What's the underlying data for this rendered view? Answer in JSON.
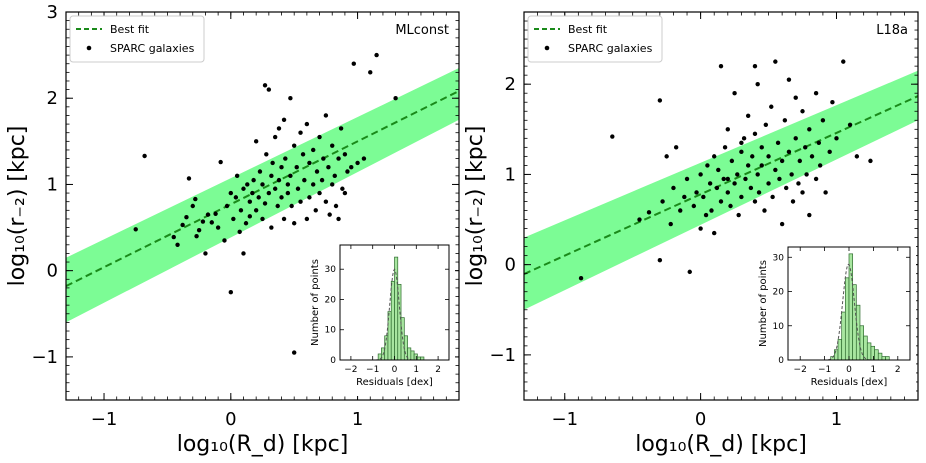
{
  "chart_data": [
    {
      "type": "scatter",
      "title": "MLconst",
      "xlabel": "log₁₀(R_d)  [kpc]",
      "ylabel": "log₁₀(r₋₂)  [kpc]",
      "xlim": [
        -1.3,
        1.8
      ],
      "ylim": [
        -1.5,
        3.0
      ],
      "xticks": [
        -1,
        0,
        1
      ],
      "yticks": [
        -1,
        0,
        1,
        2,
        3
      ],
      "legend_position": "top-left",
      "legend": [
        {
          "label": "Best fit",
          "style": "dashed-line",
          "color": "#1a8a1a"
        },
        {
          "label": "SPARC galaxies",
          "style": "dot",
          "color": "#000000"
        }
      ],
      "colors": {
        "band": "#7cfc95",
        "fit": "#1a8a1a",
        "points": "#000000"
      },
      "fit": {
        "slope": 0.73,
        "intercept": 0.77
      },
      "band": {
        "x": [
          -1.3,
          1.8
        ],
        "lower": [
          -0.6,
          1.75
        ],
        "upper": [
          0.15,
          2.35
        ]
      },
      "points": [
        [
          -0.75,
          0.48
        ],
        [
          -0.68,
          1.33
        ],
        [
          -0.45,
          0.39
        ],
        [
          -0.42,
          0.3
        ],
        [
          -0.38,
          0.53
        ],
        [
          -0.35,
          0.62
        ],
        [
          -0.33,
          1.07
        ],
        [
          -0.3,
          0.75
        ],
        [
          -0.28,
          0.83
        ],
        [
          -0.27,
          0.4
        ],
        [
          -0.25,
          0.47
        ],
        [
          -0.22,
          0.57
        ],
        [
          -0.2,
          0.2
        ],
        [
          -0.18,
          0.65
        ],
        [
          -0.15,
          0.56
        ],
        [
          -0.12,
          0.66
        ],
        [
          -0.1,
          0.5
        ],
        [
          -0.08,
          1.26
        ],
        [
          -0.05,
          0.35
        ],
        [
          -0.03,
          0.75
        ],
        [
          0.0,
          -0.25
        ],
        [
          0.0,
          0.9
        ],
        [
          0.02,
          0.6
        ],
        [
          0.04,
          0.85
        ],
        [
          0.05,
          1.1
        ],
        [
          0.07,
          0.45
        ],
        [
          0.08,
          0.7
        ],
        [
          0.1,
          0.95
        ],
        [
          0.1,
          0.2
        ],
        [
          0.12,
          0.55
        ],
        [
          0.13,
          1.0
        ],
        [
          0.15,
          0.8
        ],
        [
          0.15,
          0.63
        ],
        [
          0.17,
          0.9
        ],
        [
          0.18,
          1.05
        ],
        [
          0.2,
          0.7
        ],
        [
          0.2,
          1.5
        ],
        [
          0.22,
          0.85
        ],
        [
          0.23,
          1.15
        ],
        [
          0.25,
          0.6
        ],
        [
          0.25,
          1.0
        ],
        [
          0.27,
          0.78
        ],
        [
          0.27,
          2.15
        ],
        [
          0.28,
          1.35
        ],
        [
          0.3,
          0.9
        ],
        [
          0.3,
          2.1
        ],
        [
          0.32,
          1.1
        ],
        [
          0.32,
          0.5
        ],
        [
          0.33,
          1.25
        ],
        [
          0.35,
          0.95
        ],
        [
          0.35,
          1.55
        ],
        [
          0.37,
          0.75
        ],
        [
          0.38,
          1.05
        ],
        [
          0.38,
          1.65
        ],
        [
          0.4,
          0.85
        ],
        [
          0.4,
          1.2
        ],
        [
          0.42,
          1.75
        ],
        [
          0.42,
          0.6
        ],
        [
          0.43,
          1.3
        ],
        [
          0.45,
          0.9
        ],
        [
          0.45,
          1.0
        ],
        [
          0.47,
          1.1
        ],
        [
          0.47,
          2.0
        ],
        [
          0.48,
          0.75
        ],
        [
          0.5,
          -0.95
        ],
        [
          0.5,
          1.45
        ],
        [
          0.5,
          0.55
        ],
        [
          0.52,
          1.2
        ],
        [
          0.53,
          0.95
        ],
        [
          0.55,
          1.6
        ],
        [
          0.55,
          0.8
        ],
        [
          0.57,
          1.35
        ],
        [
          0.58,
          1.05
        ],
        [
          0.6,
          0.6
        ],
        [
          0.6,
          1.7
        ],
        [
          0.62,
          0.85
        ],
        [
          0.62,
          1.25
        ],
        [
          0.63,
          -0.2
        ],
        [
          0.65,
          1.0
        ],
        [
          0.65,
          1.4
        ],
        [
          0.67,
          0.7
        ],
        [
          0.68,
          1.15
        ],
        [
          0.7,
          0.9
        ],
        [
          0.7,
          1.55
        ],
        [
          0.72,
          1.05
        ],
        [
          0.73,
          1.3
        ],
        [
          0.75,
          0.8
        ],
        [
          0.75,
          1.8
        ],
        [
          0.77,
          1.2
        ],
        [
          0.78,
          0.65
        ],
        [
          0.8,
          1.45
        ],
        [
          0.8,
          1.0
        ],
        [
          0.82,
          1.1
        ],
        [
          0.83,
          0.75
        ],
        [
          0.85,
          1.3
        ],
        [
          0.87,
          1.65
        ],
        [
          0.88,
          0.95
        ],
        [
          0.9,
          1.35
        ],
        [
          0.92,
          1.15
        ],
        [
          0.95,
          1.2
        ],
        [
          0.97,
          2.4
        ],
        [
          1.0,
          1.25
        ],
        [
          1.05,
          1.3
        ],
        [
          1.1,
          2.3
        ],
        [
          1.15,
          2.5
        ],
        [
          1.3,
          2.0
        ],
        [
          0.85,
          0.6
        ],
        [
          0.9,
          0.9
        ]
      ],
      "inset": {
        "type": "histogram",
        "xlabel": "Residuals [dex]",
        "ylabel": "Number of points",
        "xlim": [
          -2.5,
          2.5
        ],
        "ylim": [
          0,
          38
        ],
        "xticks": [
          -2,
          -1,
          0,
          1,
          2
        ],
        "yticks": [
          0,
          10,
          20,
          30
        ],
        "bin_edges": [
          -0.75,
          -0.6,
          -0.45,
          -0.3,
          -0.15,
          0.0,
          0.15,
          0.3,
          0.45,
          0.6,
          0.75,
          0.9,
          1.05,
          1.2,
          1.35
        ],
        "counts": [
          2,
          4,
          8,
          16,
          26,
          34,
          25,
          14,
          8,
          4,
          3,
          2,
          1,
          1
        ],
        "gaussian": {
          "mu": 0.0,
          "sigma": 0.22,
          "amplitude": 30
        }
      }
    },
    {
      "type": "scatter",
      "title": "L18a",
      "xlabel": "log₁₀(R_d)  [kpc]",
      "ylabel": "log₁₀(r₋₂)  [kpc]",
      "xlim": [
        -1.3,
        1.6
      ],
      "ylim": [
        -1.5,
        2.8
      ],
      "xticks": [
        -1,
        0,
        1
      ],
      "yticks": [
        -1,
        0,
        1,
        2
      ],
      "legend_position": "top-left",
      "legend": [
        {
          "label": "Best fit",
          "style": "dashed-line",
          "color": "#1a8a1a"
        },
        {
          "label": "SPARC galaxies",
          "style": "dot",
          "color": "#000000"
        }
      ],
      "colors": {
        "band": "#7cfc95",
        "fit": "#1a8a1a",
        "points": "#000000"
      },
      "fit": {
        "slope": 0.68,
        "intercept": 0.78
      },
      "band": {
        "x": [
          -1.3,
          1.6
        ],
        "lower": [
          -0.5,
          1.6
        ],
        "upper": [
          0.3,
          2.15
        ]
      },
      "points": [
        [
          -0.88,
          -0.15
        ],
        [
          -0.65,
          1.42
        ],
        [
          -0.45,
          0.5
        ],
        [
          -0.38,
          0.58
        ],
        [
          -0.3,
          0.05
        ],
        [
          -0.3,
          1.82
        ],
        [
          -0.28,
          0.7
        ],
        [
          -0.25,
          1.2
        ],
        [
          -0.22,
          0.45
        ],
        [
          -0.2,
          0.85
        ],
        [
          -0.18,
          1.3
        ],
        [
          -0.15,
          0.6
        ],
        [
          -0.12,
          0.75
        ],
        [
          -0.1,
          0.95
        ],
        [
          -0.08,
          -0.08
        ],
        [
          -0.05,
          0.65
        ],
        [
          -0.03,
          0.8
        ],
        [
          0.0,
          0.4
        ],
        [
          0.0,
          1.0
        ],
        [
          0.02,
          0.75
        ],
        [
          0.04,
          0.55
        ],
        [
          0.05,
          1.1
        ],
        [
          0.07,
          0.9
        ],
        [
          0.08,
          0.6
        ],
        [
          0.1,
          1.2
        ],
        [
          0.1,
          0.35
        ],
        [
          0.12,
          0.85
        ],
        [
          0.13,
          1.05
        ],
        [
          0.15,
          0.7
        ],
        [
          0.15,
          2.2
        ],
        [
          0.17,
          0.95
        ],
        [
          0.18,
          1.3
        ],
        [
          0.2,
          0.8
        ],
        [
          0.2,
          1.5
        ],
        [
          0.22,
          0.65
        ],
        [
          0.23,
          1.15
        ],
        [
          0.25,
          0.9
        ],
        [
          0.25,
          1.9
        ],
        [
          0.27,
          1.0
        ],
        [
          0.28,
          0.55
        ],
        [
          0.3,
          1.25
        ],
        [
          0.3,
          0.75
        ],
        [
          0.32,
          1.4
        ],
        [
          0.33,
          0.95
        ],
        [
          0.35,
          1.1
        ],
        [
          0.35,
          1.65
        ],
        [
          0.37,
          0.85
        ],
        [
          0.38,
          1.2
        ],
        [
          0.4,
          0.7
        ],
        [
          0.4,
          1.45
        ],
        [
          0.42,
          1.0
        ],
        [
          0.42,
          2.0
        ],
        [
          0.43,
          0.8
        ],
        [
          0.45,
          1.3
        ],
        [
          0.45,
          1.1
        ],
        [
          0.47,
          0.6
        ],
        [
          0.48,
          1.55
        ],
        [
          0.5,
          0.9
        ],
        [
          0.5,
          1.2
        ],
        [
          0.52,
          1.75
        ],
        [
          0.53,
          0.75
        ],
        [
          0.55,
          1.05
        ],
        [
          0.55,
          2.25
        ],
        [
          0.57,
          1.35
        ],
        [
          0.58,
          0.95
        ],
        [
          0.6,
          1.15
        ],
        [
          0.6,
          0.45
        ],
        [
          0.62,
          1.6
        ],
        [
          0.63,
          0.85
        ],
        [
          0.65,
          1.25
        ],
        [
          0.65,
          2.05
        ],
        [
          0.67,
          1.0
        ],
        [
          0.68,
          0.7
        ],
        [
          0.7,
          1.4
        ],
        [
          0.7,
          1.85
        ],
        [
          0.72,
          0.9
        ],
        [
          0.73,
          1.15
        ],
        [
          0.75,
          0.8
        ],
        [
          0.75,
          1.7
        ],
        [
          0.77,
          1.3
        ],
        [
          0.78,
          1.0
        ],
        [
          0.8,
          1.5
        ],
        [
          0.8,
          0.55
        ],
        [
          0.82,
          1.2
        ],
        [
          0.85,
          0.95
        ],
        [
          0.85,
          1.9
        ],
        [
          0.87,
          1.35
        ],
        [
          0.88,
          1.1
        ],
        [
          0.9,
          1.6
        ],
        [
          0.92,
          0.8
        ],
        [
          0.95,
          1.25
        ],
        [
          0.97,
          1.8
        ],
        [
          1.0,
          1.4
        ],
        [
          1.05,
          2.25
        ],
        [
          1.1,
          1.55
        ],
        [
          1.15,
          1.2
        ],
        [
          1.25,
          1.15
        ],
        [
          0.58,
          0.05
        ],
        [
          0.45,
          -0.35
        ],
        [
          0.3,
          1.35
        ],
        [
          0.4,
          2.2
        ],
        [
          0.2,
          0.95
        ]
      ],
      "inset": {
        "type": "histogram",
        "xlabel": "Residuals [dex]",
        "ylabel": "Number of points",
        "xlim": [
          -2.5,
          2.5
        ],
        "ylim": [
          0,
          33
        ],
        "xticks": [
          -2,
          -1,
          0,
          1,
          2
        ],
        "yticks": [
          0,
          10,
          20,
          30
        ],
        "bin_edges": [
          -0.75,
          -0.6,
          -0.45,
          -0.3,
          -0.15,
          0.0,
          0.15,
          0.3,
          0.45,
          0.6,
          0.75,
          0.9,
          1.05,
          1.2,
          1.35,
          1.5,
          1.65
        ],
        "counts": [
          1,
          3,
          6,
          14,
          24,
          31,
          22,
          16,
          10,
          7,
          5,
          4,
          3,
          2,
          1,
          1
        ],
        "gaussian": {
          "mu": -0.02,
          "sigma": 0.24,
          "amplitude": 28
        }
      }
    }
  ]
}
